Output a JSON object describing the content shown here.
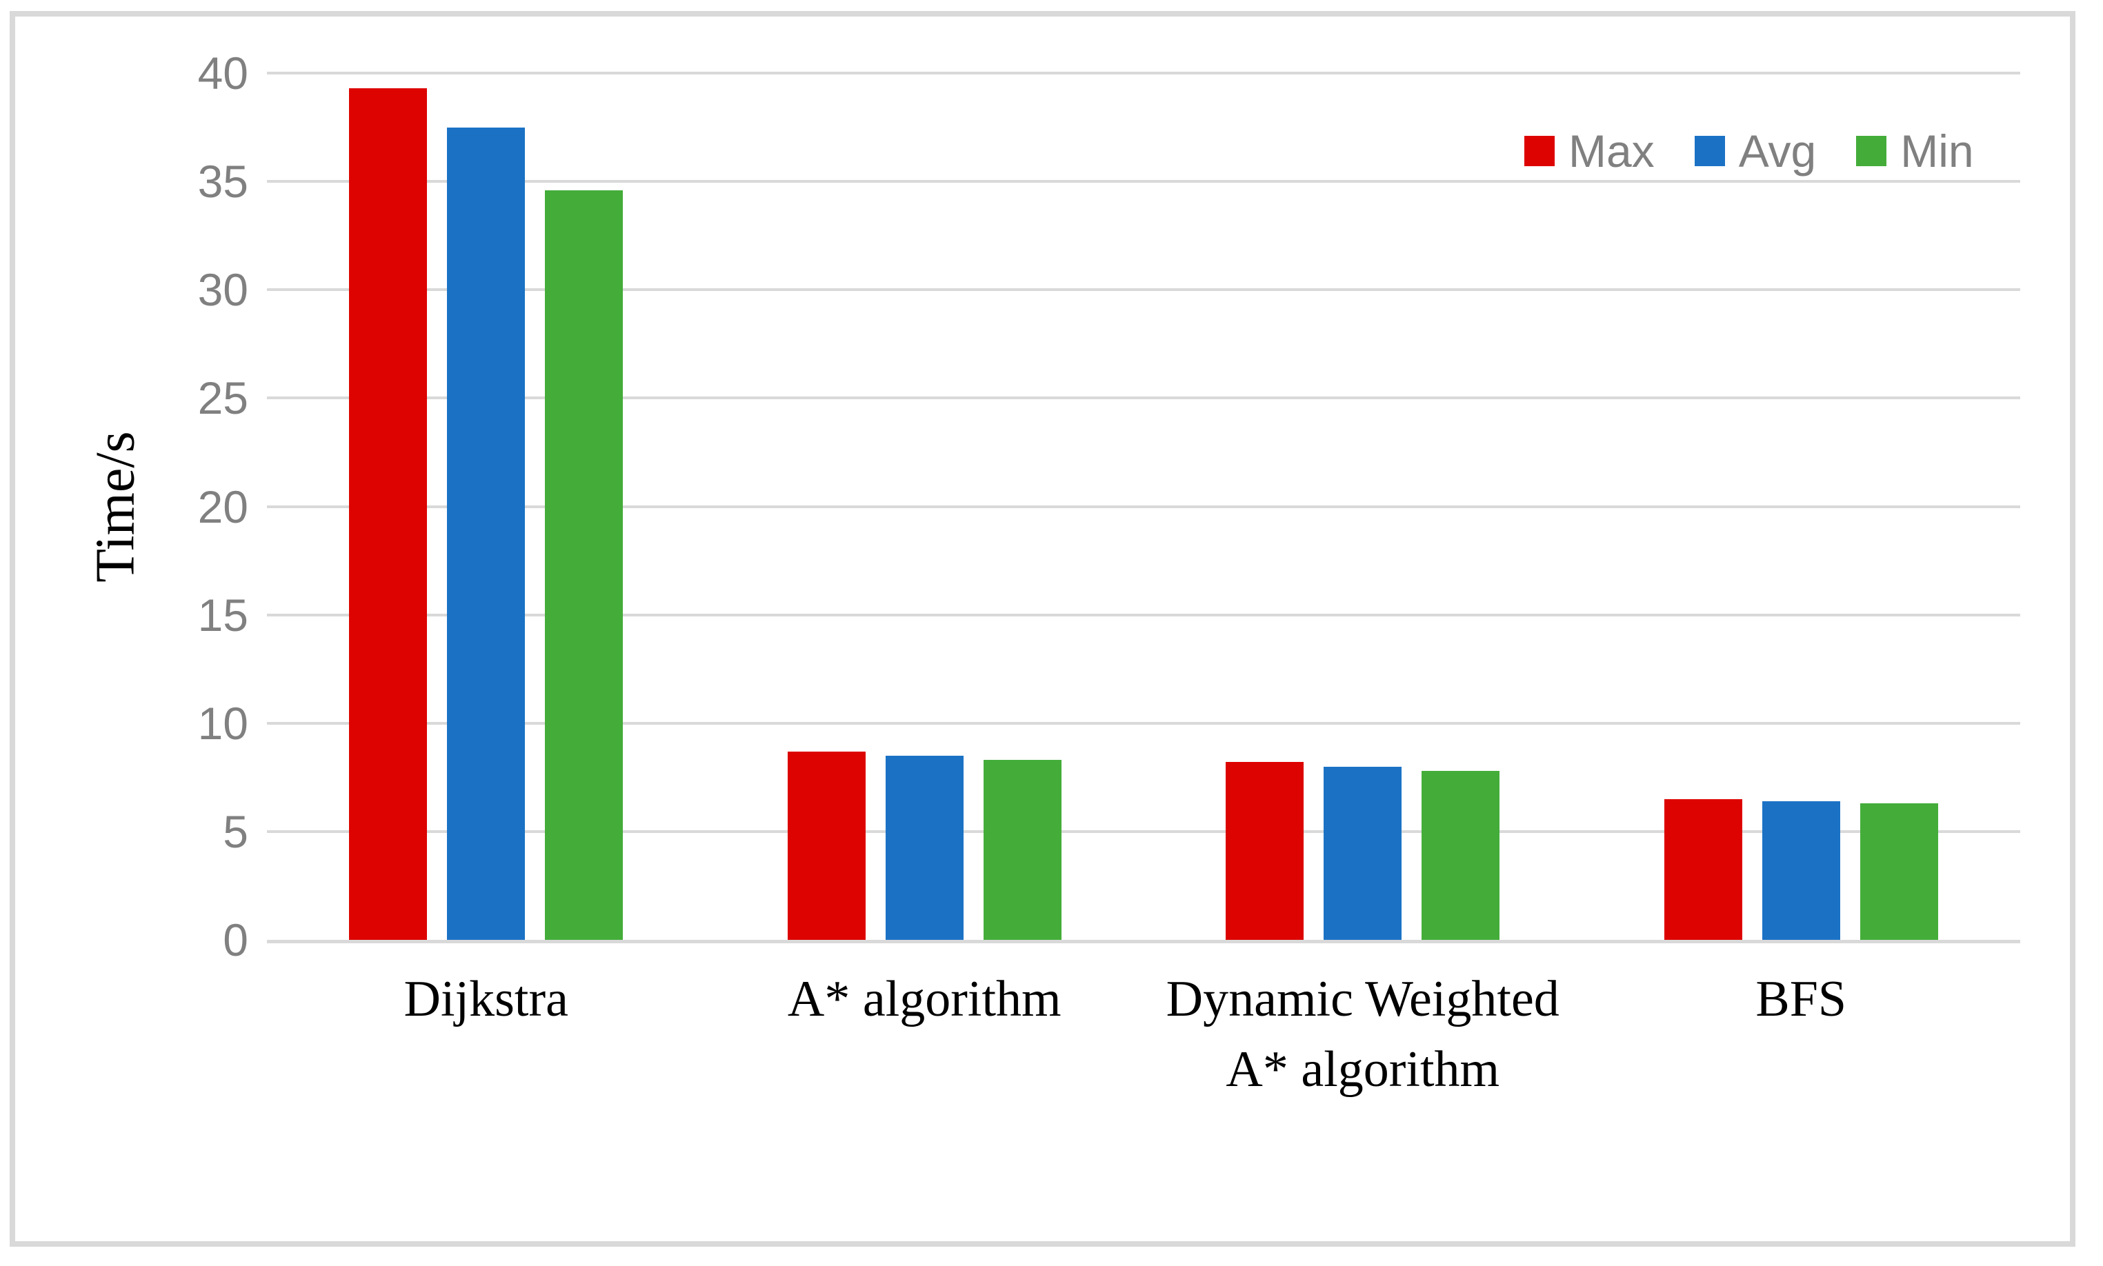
{
  "figure": {
    "background": "#ffffff",
    "border_color": "#D9D9D9"
  },
  "chart_data": {
    "type": "bar",
    "title": "",
    "xlabel": "",
    "ylabel": "Time/s",
    "ylim": [
      0,
      40
    ],
    "yticks": [
      0,
      5,
      10,
      15,
      20,
      25,
      30,
      35,
      40
    ],
    "grid": true,
    "gridline_color": "#D9D9D9",
    "tick_label_color": "#808080",
    "legend_label_color": "#808080",
    "axis_label_color": "#000000",
    "legend_position": "top-right",
    "categories": [
      [
        "Dijkstra"
      ],
      [
        "A* algorithm"
      ],
      [
        "Dynamic Weighted",
        "A* algorithm"
      ],
      [
        "BFS"
      ]
    ],
    "series": [
      {
        "name": "Max",
        "color": "#DD0300",
        "values": [
          39.3,
          8.7,
          8.2,
          6.5
        ]
      },
      {
        "name": "Avg",
        "color": "#1B72C5",
        "values": [
          37.5,
          8.5,
          8.0,
          6.4
        ]
      },
      {
        "name": "Min",
        "color": "#44AD3A",
        "values": [
          34.6,
          8.3,
          7.8,
          6.3
        ]
      }
    ]
  }
}
